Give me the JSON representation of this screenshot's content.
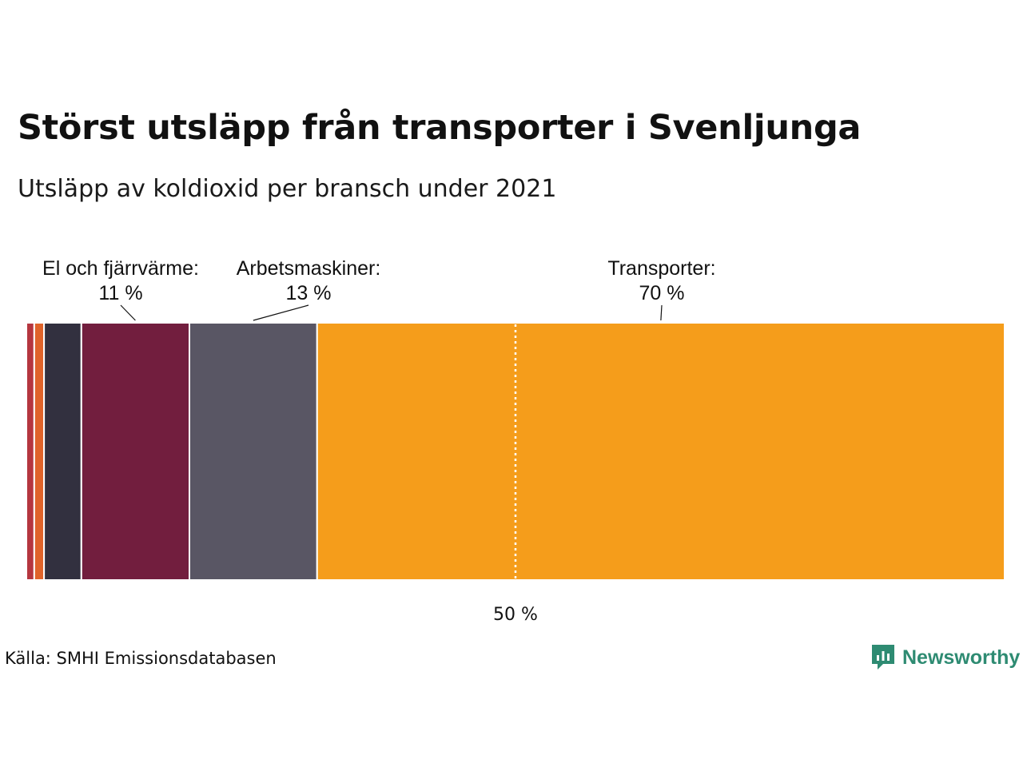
{
  "title": "Störst utsläpp från transporter i Svenljunga",
  "subtitle": "Utsläpp av koldioxid per bransch under 2021",
  "source": "Källa: SMHI Emissionsdatabasen",
  "logo": {
    "text": "Newsworthy",
    "icon": "newsworthy-chat-icon",
    "color": "#2e8b72"
  },
  "chart_data": {
    "type": "bar",
    "orientation": "horizontal-stacked-100",
    "unit": "%",
    "segments": [
      {
        "value": 0.8,
        "color": "#b5363f",
        "label": "",
        "value_label": ""
      },
      {
        "value": 1.0,
        "color": "#e0632a",
        "label": "",
        "value_label": ""
      },
      {
        "value": 3.8,
        "color": "#32303f",
        "label": "",
        "value_label": ""
      },
      {
        "value": 11,
        "color": "#721e3e",
        "label": "El och fjärrvärme:",
        "value_label": "11 %"
      },
      {
        "value": 13,
        "color": "#595664",
        "label": "Arbetsmaskiner:",
        "value_label": "13 %"
      },
      {
        "value": 70,
        "color": "#f59d1b",
        "label": "Transporter:",
        "value_label": "70 %"
      }
    ],
    "reference_line": {
      "value": 50,
      "label": "50 %"
    }
  }
}
